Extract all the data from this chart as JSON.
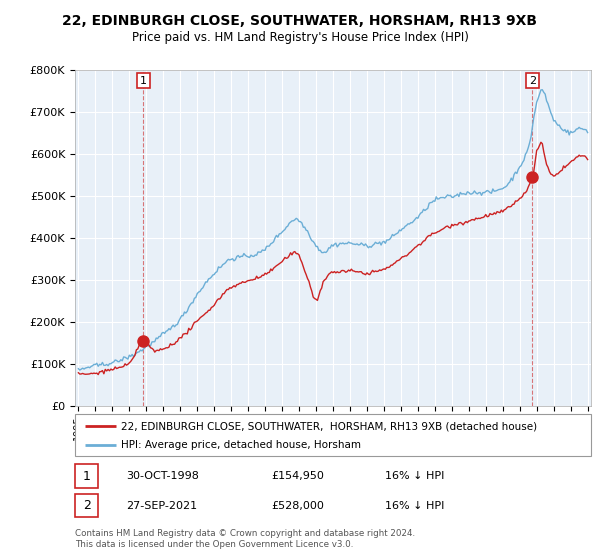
{
  "title_line1": "22, EDINBURGH CLOSE, SOUTHWATER, HORSHAM, RH13 9XB",
  "title_line2": "Price paid vs. HM Land Registry's House Price Index (HPI)",
  "legend_label1": "22, EDINBURGH CLOSE, SOUTHWATER,  HORSHAM, RH13 9XB (detached house)",
  "legend_label2": "HPI: Average price, detached house, Horsham",
  "point1_date": "30-OCT-1998",
  "point1_price": "£154,950",
  "point1_hpi": "16% ↓ HPI",
  "point2_date": "27-SEP-2021",
  "point2_price": "£528,000",
  "point2_hpi": "16% ↓ HPI",
  "footer": "Contains HM Land Registry data © Crown copyright and database right 2024.\nThis data is licensed under the Open Government Licence v3.0.",
  "hpi_color": "#6baed6",
  "price_color": "#cc2222",
  "background_color": "#e8f0f8",
  "grid_color": "#ffffff",
  "ylim_min": 0,
  "ylim_max": 800000
}
